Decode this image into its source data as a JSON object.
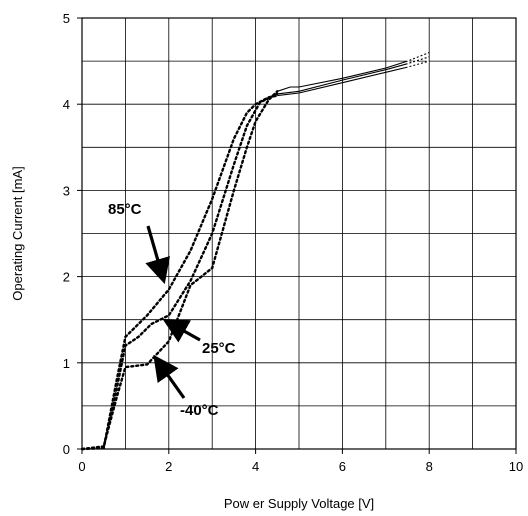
{
  "chart_data": {
    "type": "line",
    "xlabel": "Pow er Supply Voltage [V]",
    "ylabel": "Operating Current [mA]",
    "xlim": [
      0,
      10
    ],
    "ylim": [
      0,
      5
    ],
    "x_ticks": [
      "0",
      "2",
      "4",
      "6",
      "8",
      "10"
    ],
    "y_ticks": [
      "0",
      "1",
      "2",
      "3",
      "4",
      "5"
    ],
    "grid": true,
    "series": [
      {
        "name": "85°C",
        "points": [
          [
            0,
            0
          ],
          [
            0.5,
            0.01
          ],
          [
            0.8,
            0.8
          ],
          [
            1.0,
            1.3
          ],
          [
            1.2,
            1.4
          ],
          [
            1.5,
            1.55
          ],
          [
            2.0,
            1.85
          ],
          [
            2.5,
            2.3
          ],
          [
            3.0,
            2.9
          ],
          [
            3.5,
            3.6
          ],
          [
            3.8,
            3.9
          ],
          [
            4.0,
            4.0
          ],
          [
            4.3,
            4.08
          ],
          [
            4.5,
            4.1
          ],
          [
            5.0,
            4.13
          ],
          [
            6.0,
            4.25
          ],
          [
            7.0,
            4.37
          ],
          [
            7.5,
            4.43
          ],
          [
            8.0,
            4.5
          ]
        ]
      },
      {
        "name": "25°C",
        "points": [
          [
            0,
            0
          ],
          [
            0.5,
            0.02
          ],
          [
            0.8,
            0.7
          ],
          [
            1.0,
            1.2
          ],
          [
            1.3,
            1.3
          ],
          [
            1.6,
            1.45
          ],
          [
            2.0,
            1.55
          ],
          [
            2.5,
            1.95
          ],
          [
            3.0,
            2.5
          ],
          [
            3.5,
            3.3
          ],
          [
            3.8,
            3.75
          ],
          [
            4.1,
            4.02
          ],
          [
            4.5,
            4.12
          ],
          [
            5.0,
            4.15
          ],
          [
            6.0,
            4.28
          ],
          [
            7.0,
            4.4
          ],
          [
            7.5,
            4.47
          ],
          [
            8.0,
            4.55
          ]
        ]
      },
      {
        "name": "-40°C",
        "points": [
          [
            0,
            0
          ],
          [
            0.5,
            0.03
          ],
          [
            0.8,
            0.6
          ],
          [
            1.0,
            0.95
          ],
          [
            1.5,
            0.98
          ],
          [
            2.0,
            1.25
          ],
          [
            2.5,
            1.9
          ],
          [
            3.0,
            2.1
          ],
          [
            3.5,
            3.0
          ],
          [
            3.8,
            3.5
          ],
          [
            4.0,
            3.8
          ],
          [
            4.3,
            4.05
          ],
          [
            4.5,
            4.15
          ],
          [
            4.8,
            4.2
          ],
          [
            5.0,
            4.2
          ],
          [
            6.0,
            4.3
          ],
          [
            7.0,
            4.42
          ],
          [
            7.5,
            4.5
          ],
          [
            8.0,
            4.6
          ]
        ]
      }
    ],
    "annotations": [
      {
        "text": "85°C"
      },
      {
        "text": "25°C"
      },
      {
        "text": "-40°C"
      }
    ]
  }
}
